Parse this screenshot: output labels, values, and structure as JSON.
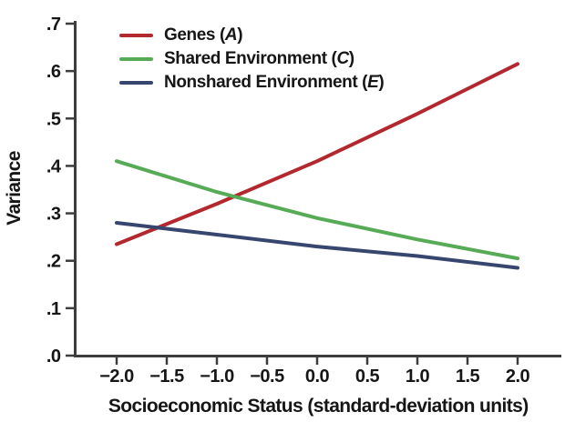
{
  "figure": {
    "background": "#ffffff",
    "text_color": "#161616"
  },
  "chart_data": {
    "type": "line",
    "title": "",
    "xlabel": "Socioeconomic Status (standard-deviation units)",
    "ylabel": "Variance",
    "xlim": [
      -2.4,
      2.45
    ],
    "ylim": [
      0,
      0.7
    ],
    "grid": false,
    "legend_position": "top-left-inside",
    "axis_color": "#3d3d3d",
    "x_tick_values": [
      -2.0,
      -1.5,
      -1.0,
      -0.5,
      0.0,
      0.5,
      1.0,
      1.5,
      2.0
    ],
    "x_ticks": [
      "−2.0",
      "−1.5",
      "−1.0",
      "−0.5",
      "0.0",
      "0.5",
      "1.0",
      "1.5",
      "2.0"
    ],
    "y_tick_values": [
      0.0,
      0.1,
      0.2,
      0.3,
      0.4,
      0.5,
      0.6,
      0.7
    ],
    "y_ticks": [
      ".0",
      ".1",
      ".2",
      ".3",
      ".4",
      ".5",
      ".6",
      ".7"
    ],
    "x": [
      -2,
      -1,
      0,
      1,
      2
    ],
    "series": [
      {
        "name": "Genes",
        "symbol": "A",
        "label": "Genes (A)",
        "label_parts": [
          "Genes (",
          "A",
          ")"
        ],
        "color": "#b2282e",
        "values": [
          0.235,
          0.32,
          0.41,
          0.51,
          0.615
        ]
      },
      {
        "name": "Shared Environment",
        "symbol": "C",
        "label": "Shared Environment (C)",
        "label_parts": [
          "Shared Environment (",
          "C",
          ")"
        ],
        "color": "#57ab57",
        "values": [
          0.41,
          0.345,
          0.29,
          0.245,
          0.205
        ]
      },
      {
        "name": "Nonshared Environment",
        "symbol": "E",
        "label": "Nonshared Environment (E)",
        "label_parts": [
          "Nonshared Environment (",
          "E",
          ")"
        ],
        "color": "#36466e",
        "values": [
          0.28,
          0.255,
          0.23,
          0.21,
          0.185
        ]
      }
    ]
  }
}
